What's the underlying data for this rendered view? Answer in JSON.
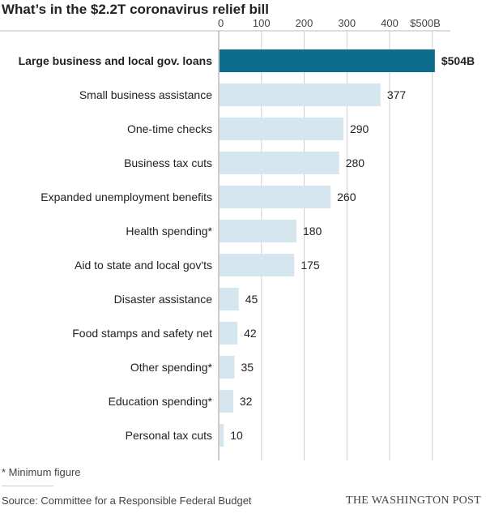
{
  "title": "What’s in the $2.2T coronavirus relief bill",
  "footnote": "* Minimum figure",
  "source": "Source: Committee for a Responsible Federal Budget",
  "credit": "THE WASHINGTON POST",
  "colors": {
    "highlight": "#0d6b8c",
    "bar": "#d6e6ef",
    "gridline": "#cfcfcf"
  },
  "chart_data": {
    "type": "bar",
    "orientation": "horizontal",
    "xlim": [
      0,
      500
    ],
    "ticks": [
      {
        "value": 0,
        "label": "0"
      },
      {
        "value": 100,
        "label": "100"
      },
      {
        "value": 200,
        "label": "200"
      },
      {
        "value": 300,
        "label": "300"
      },
      {
        "value": 400,
        "label": "400"
      },
      {
        "value": 500,
        "label": "$500B"
      }
    ],
    "grid": true,
    "categories": [
      "Large business and local gov. loans",
      "Small business assistance",
      "One-time checks",
      "Business tax cuts",
      "Expanded unemployment benefits",
      "Health spending*",
      "Aid to state and local gov'ts",
      "Disaster assistance",
      "Food stamps and safety net",
      "Other spending*",
      "Education spending*",
      "Personal tax cuts"
    ],
    "values": [
      504,
      377,
      290,
      280,
      260,
      180,
      175,
      45,
      42,
      35,
      32,
      10
    ],
    "value_labels": [
      "$504B",
      "377",
      "290",
      "280",
      "260",
      "180",
      "175",
      "45",
      "42",
      "35",
      "32",
      "10"
    ],
    "highlighted": [
      0
    ]
  }
}
